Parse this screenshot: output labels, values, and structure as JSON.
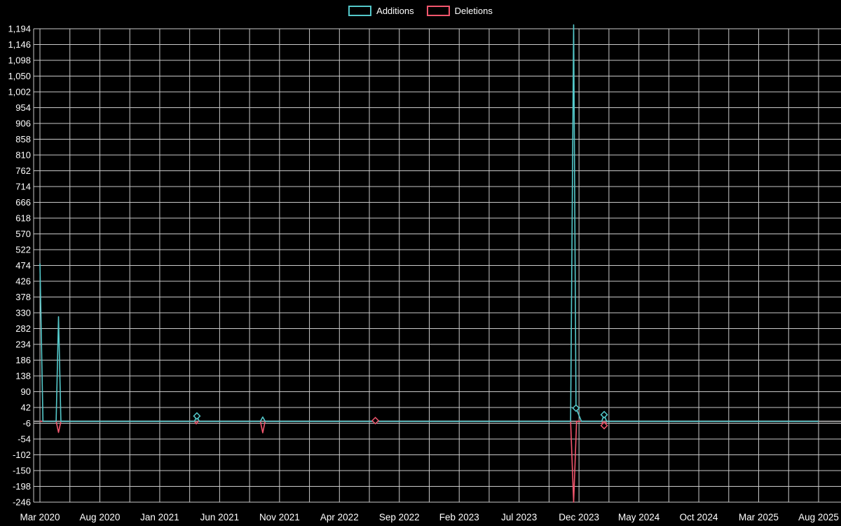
{
  "legend": {
    "items": [
      {
        "label": "Additions",
        "color": "#54c8ca"
      },
      {
        "label": "Deletions",
        "color": "#f2566d"
      }
    ]
  },
  "chart_data": {
    "type": "line",
    "title": "",
    "background": "#000000",
    "grid": true,
    "gridline_color": "#c9c9c9",
    "zero_line_color": "#9a9a9a",
    "legend_position": "top-center",
    "x_axis": {
      "unit": "months since Mar 2020",
      "range_months": [
        0,
        65
      ],
      "tick_every_months": 5,
      "gridline_every_months": 2.5,
      "tick_labels": [
        "Mar 2020",
        "Aug 2020",
        "Jan 2021",
        "Jun 2021",
        "Nov 2021",
        "Apr 2022",
        "Sep 2022",
        "Feb 2023",
        "Jul 2023",
        "Dec 2023",
        "May 2024",
        "Oct 2024",
        "Mar 2025",
        "Aug 2025"
      ]
    },
    "y_axis": {
      "min": -246,
      "max": 1194,
      "step": 48,
      "tick_labels": [
        "-246",
        "-198",
        "-150",
        "-102",
        "-54",
        "-6",
        "42",
        "90",
        "138",
        "186",
        "234",
        "282",
        "330",
        "378",
        "426",
        "474",
        "522",
        "570",
        "618",
        "666",
        "714",
        "762",
        "810",
        "858",
        "906",
        "954",
        "1,002",
        "1,050",
        "1,098",
        "1,146",
        "1,194"
      ]
    },
    "series": [
      {
        "name": "Additions",
        "color": "#54c8ca",
        "points": [
          [
            0,
            480
          ],
          [
            0.25,
            0
          ],
          [
            1.35,
            0
          ],
          [
            1.55,
            318
          ],
          [
            1.75,
            0
          ],
          [
            12.9,
            0
          ],
          [
            13.1,
            16
          ],
          [
            13.3,
            0
          ],
          [
            18.4,
            0
          ],
          [
            18.6,
            13
          ],
          [
            18.8,
            0
          ],
          [
            44.3,
            0
          ],
          [
            44.55,
            1206
          ],
          [
            44.75,
            40
          ],
          [
            45.2,
            0
          ],
          [
            46.9,
            0
          ],
          [
            47.1,
            20
          ],
          [
            47.3,
            0
          ],
          [
            65,
            0
          ]
        ],
        "markers": [
          [
            13.1,
            16
          ],
          [
            44.75,
            40
          ],
          [
            47.1,
            20
          ]
        ]
      },
      {
        "name": "Deletions",
        "color": "#f2566d",
        "points": [
          [
            0,
            0
          ],
          [
            1.35,
            0
          ],
          [
            1.55,
            -34
          ],
          [
            1.75,
            0
          ],
          [
            12.9,
            0
          ],
          [
            13.05,
            -8
          ],
          [
            13.2,
            0
          ],
          [
            18.4,
            0
          ],
          [
            18.6,
            -35
          ],
          [
            18.8,
            0
          ],
          [
            27.9,
            0
          ],
          [
            28.0,
            2
          ],
          [
            28.1,
            0
          ],
          [
            44.3,
            0
          ],
          [
            44.55,
            -246
          ],
          [
            44.8,
            0
          ],
          [
            46.9,
            0
          ],
          [
            47.1,
            -13
          ],
          [
            47.3,
            0
          ],
          [
            65,
            0
          ]
        ],
        "markers": [
          [
            28.0,
            2
          ],
          [
            47.1,
            -13
          ]
        ]
      }
    ]
  }
}
